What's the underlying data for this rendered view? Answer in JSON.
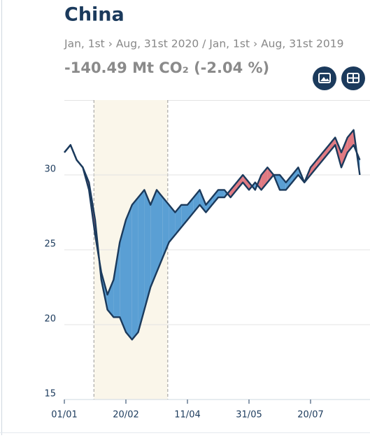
{
  "chart_data": {
    "type": "line-difference",
    "title": "China",
    "subtitle": "Jan, 1st › Aug, 31st 2020 / Jan, 1st › Aug, 31st 2019",
    "summary": "-140.49 Mt CO₂ (-2.04 %)",
    "x": [
      "01/01",
      "06/01",
      "11/01",
      "16/01",
      "21/01",
      "26/01",
      "31/01",
      "05/02",
      "10/02",
      "15/02",
      "20/02",
      "25/02",
      "02/03",
      "07/03",
      "12/03",
      "17/03",
      "22/03",
      "27/03",
      "01/04",
      "06/04",
      "11/04",
      "16/04",
      "21/04",
      "26/04",
      "01/05",
      "06/05",
      "11/05",
      "16/05",
      "21/05",
      "26/05",
      "31/05",
      "05/06",
      "10/06",
      "15/06",
      "20/06",
      "25/06",
      "30/06",
      "05/07",
      "10/07",
      "15/07",
      "20/07",
      "25/07",
      "30/07",
      "04/08",
      "09/08",
      "14/08",
      "19/08",
      "24/08",
      "29/08"
    ],
    "series": [
      {
        "color": "#1b3a5c",
        "values": [
          31.5,
          32,
          31,
          30.5,
          29.5,
          27,
          23,
          21,
          20.5,
          20.5,
          19.5,
          19,
          19.5,
          21,
          22.5,
          23.5,
          24.5,
          25.5,
          26,
          26.5,
          27,
          27.5,
          28,
          27.5,
          28,
          28.5,
          28.5,
          29,
          29.5,
          30,
          29.5,
          29,
          30,
          30.5,
          30,
          29,
          29,
          29.5,
          30,
          29.5,
          30.5,
          31,
          31.5,
          32,
          32.5,
          31.5,
          32.5,
          33,
          30
        ]
      },
      {
        "color": "#1b3a5c",
        "values": [
          31.5,
          32,
          31,
          30.5,
          29,
          26,
          23.5,
          22,
          23,
          25.5,
          27,
          28,
          28.5,
          29,
          28,
          29,
          28.5,
          28,
          27.5,
          28,
          28,
          28.5,
          29,
          28,
          28.5,
          29,
          29,
          28.5,
          29,
          29.5,
          29,
          29.5,
          29,
          29.5,
          30,
          30,
          29.5,
          30,
          30.5,
          29.5,
          30,
          30.5,
          31,
          31.5,
          32,
          30.5,
          31.5,
          32,
          31
        ]
      }
    ],
    "below_color": "#5a9fd4",
    "above_color": "#e07a82",
    "highlight": [
      "25/01",
      "26/03"
    ],
    "highlight_color": "#faf6ea",
    "ylim": [
      15,
      35
    ],
    "yticks": [
      15,
      20,
      25,
      30
    ],
    "xticks": [
      "01/01",
      "20/02",
      "11/04",
      "31/05",
      "20/07"
    ],
    "grid": true
  }
}
